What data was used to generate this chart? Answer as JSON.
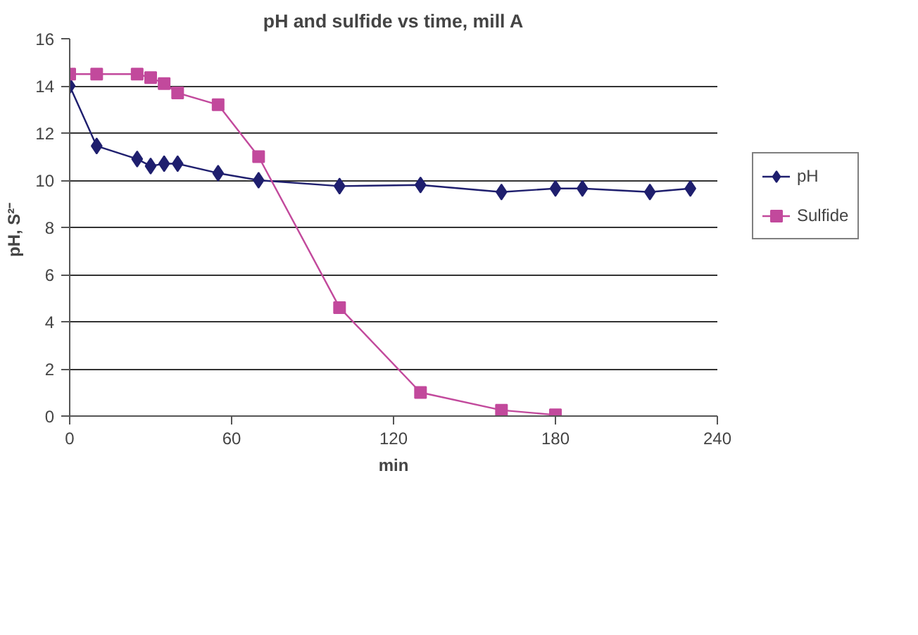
{
  "chart_data": {
    "type": "line",
    "title": "pH and sulfide vs time, mill A",
    "xlabel": "min",
    "ylabel": "pH,  S²⁻",
    "xlim": [
      0,
      240
    ],
    "xticks": [
      0,
      60,
      120,
      180,
      240
    ],
    "ylim": [
      0,
      16
    ],
    "yticks": [
      0,
      2,
      4,
      6,
      8,
      10,
      12,
      14,
      16
    ],
    "grid": "y",
    "legend": "right",
    "series": [
      {
        "name": "pH",
        "color": "#1f1f6e",
        "marker": "diamond",
        "x": [
          0,
          10,
          25,
          30,
          35,
          40,
          55,
          70,
          100,
          130,
          160,
          180,
          190,
          215,
          230
        ],
        "values": [
          14,
          11.45,
          10.9,
          10.6,
          10.7,
          10.7,
          10.3,
          10.0,
          9.75,
          9.8,
          9.5,
          9.65,
          9.65,
          9.5,
          9.65
        ]
      },
      {
        "name": "Sulfide",
        "color": "#c2499c",
        "marker": "square",
        "x": [
          0,
          10,
          25,
          30,
          35,
          40,
          55,
          70,
          100,
          130,
          160,
          180
        ],
        "values": [
          14.5,
          14.5,
          14.5,
          14.35,
          14.1,
          13.7,
          13.2,
          11.0,
          4.6,
          1.0,
          0.25,
          0.05
        ]
      }
    ]
  }
}
